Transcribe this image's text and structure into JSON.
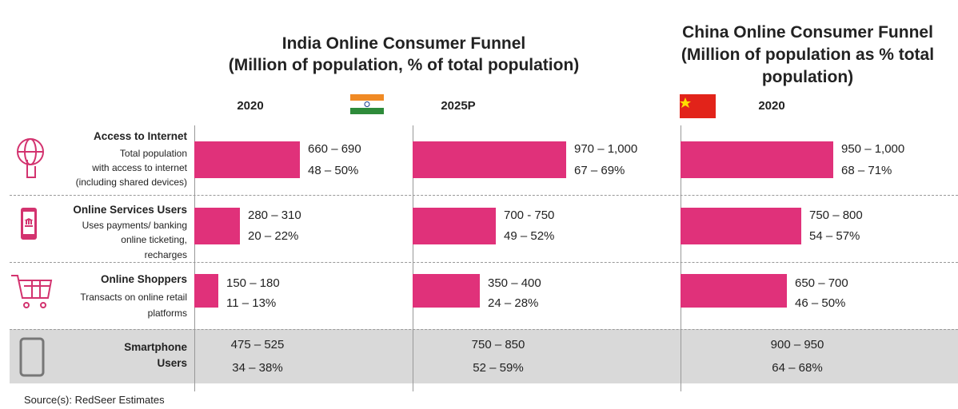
{
  "india_title": [
    "India Online Consumer Funnel",
    "(Million of population, % of total population)"
  ],
  "china_title": [
    "China Online Consumer Funnel",
    "(Million of population as % total",
    "population)"
  ],
  "columns": [
    "2020",
    "2025P",
    "2020"
  ],
  "rows": [
    {
      "title": "Access to Internet",
      "description": [
        "Total population",
        "with access to internet",
        "(including shared devices)"
      ],
      "values": [
        {
          "population": "660 – 690",
          "share": "48 – 50%"
        },
        {
          "population": "970 – 1,000",
          "share": "67 – 69%"
        },
        {
          "population": "950 – 1,000",
          "share": "68 – 71%"
        }
      ]
    },
    {
      "title": "Online Services Users",
      "description": [
        "Uses payments/ banking",
        "online ticketing,",
        "recharges"
      ],
      "values": [
        {
          "population": "280 – 310",
          "share": "20 – 22%"
        },
        {
          "population": "700 - 750",
          "share": "49 – 52%"
        },
        {
          "population": "750 – 800",
          "share": "54 – 57%"
        }
      ]
    },
    {
      "title": "Online Shoppers",
      "description": [
        "Transacts on online retail",
        "platforms"
      ],
      "values": [
        {
          "population": "150 – 180",
          "share": "11 – 13%"
        },
        {
          "population": "350 – 400",
          "share": "24 – 28%"
        },
        {
          "population": "650 – 700",
          "share": "46 – 50%"
        }
      ]
    },
    {
      "title": [
        "Smartphone",
        "Users"
      ],
      "values": [
        {
          "population": "475 – 525",
          "share": "34 – 38%"
        },
        {
          "population": "750 – 850",
          "share": "52 – 59%"
        },
        {
          "population": "900 – 950",
          "share": "64 – 68%"
        }
      ]
    }
  ],
  "source": "Source(s): RedSeer Estimates"
}
